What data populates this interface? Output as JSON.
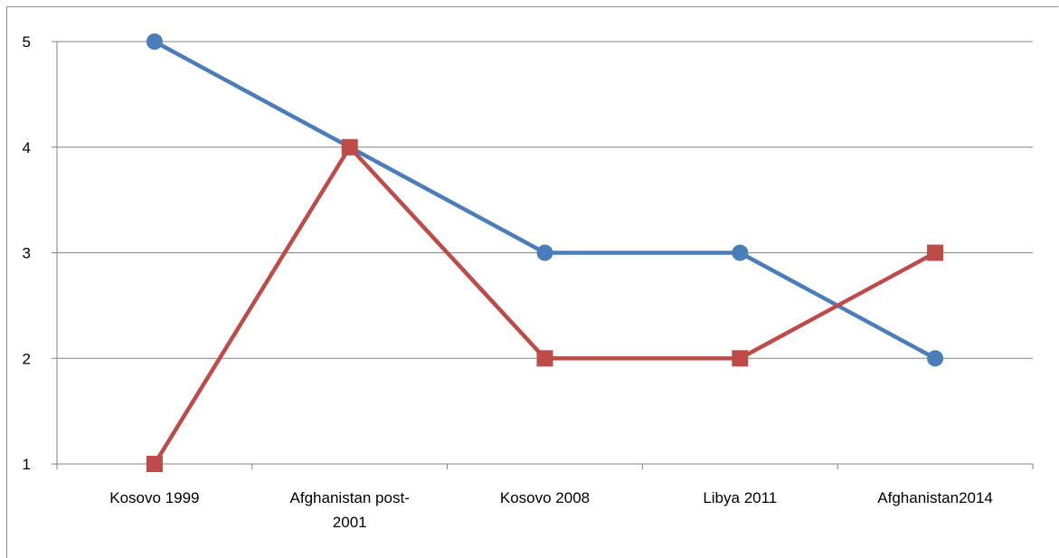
{
  "chart_data": {
    "type": "line",
    "categories": [
      "Kosovo 1999",
      "Afghanistan post-2001",
      "Kosovo 2008",
      "Libya 2011",
      "Afghanistan2014"
    ],
    "category_label_lines": [
      [
        "Kosovo 1999"
      ],
      [
        "Afghanistan post-",
        "2001"
      ],
      [
        "Kosovo 2008"
      ],
      [
        "Libya 2011"
      ],
      [
        "Afghanistan2014"
      ]
    ],
    "series": [
      {
        "values": [
          5,
          4,
          3,
          3,
          2
        ],
        "color": "#4a7ebb",
        "marker": "circle"
      },
      {
        "values": [
          1,
          4,
          2,
          2,
          3
        ],
        "color": "#be4b48",
        "marker": "square"
      }
    ],
    "yticks": [
      1,
      2,
      3,
      4,
      5
    ],
    "ylim": [
      1,
      5
    ],
    "grid": true,
    "legend": "none",
    "title": "",
    "xlabel": "",
    "ylabel": ""
  }
}
